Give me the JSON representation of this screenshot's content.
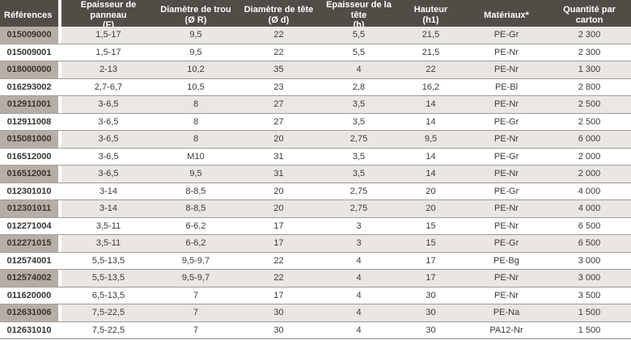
{
  "table": {
    "columns": [
      {
        "key": "references",
        "label": "Références",
        "sub": ""
      },
      {
        "key": "epaisseur-panneau",
        "label": "Epaisseur de panneau",
        "sub": "(F)"
      },
      {
        "key": "diametre-trou",
        "label": "Diamètre de trou",
        "sub": "(Ø R)"
      },
      {
        "key": "diametre-tete",
        "label": "Diamètre de tête",
        "sub": "(Ø d)"
      },
      {
        "key": "epaisseur-tete",
        "label": "Epaisseur de la tête",
        "sub": "(h)"
      },
      {
        "key": "hauteur",
        "label": "Hauteur",
        "sub": "(h1)"
      },
      {
        "key": "materiaux",
        "label": "Matériaux*",
        "sub": ""
      },
      {
        "key": "quantite-carton",
        "label": "Quantité par carton",
        "sub": ""
      }
    ],
    "rows": [
      [
        "015009000",
        "1,5-17",
        "9,5",
        "22",
        "5,5",
        "21,5",
        "PE-Gr",
        "2 300"
      ],
      [
        "015009001",
        "1,5-17",
        "9,5",
        "22",
        "5,5",
        "21,5",
        "PE-Nr",
        "2 300"
      ],
      [
        "018000000",
        "2-13",
        "10,2",
        "35",
        "4",
        "22",
        "PE-Nr",
        "1 300"
      ],
      [
        "016293002",
        "2,7-6,7",
        "10,5",
        "23",
        "2,8",
        "16,2",
        "PE-Bl",
        "2 800"
      ],
      [
        "012911001",
        "3-6,5",
        "8",
        "27",
        "3,5",
        "14",
        "PE-Nr",
        "2 500"
      ],
      [
        "012911008",
        "3-6,5",
        "8",
        "27",
        "3,5",
        "14",
        "PE-Gr",
        "2 500"
      ],
      [
        "015081000",
        "3-6,5",
        "8",
        "20",
        "2,75",
        "9,5",
        "PE-Nr",
        "6 000"
      ],
      [
        "016512000",
        "3-6,5",
        "M10",
        "31",
        "3,5",
        "14",
        "PE-Gr",
        "2 000"
      ],
      [
        "016512001",
        "3-6,5",
        "9,5",
        "31",
        "3,5",
        "14",
        "PE-Nr",
        "2 000"
      ],
      [
        "012301010",
        "3-14",
        "8-8,5",
        "20",
        "2,75",
        "20",
        "PE-Gr",
        "4 000"
      ],
      [
        "012301011",
        "3-14",
        "8-8,5",
        "20",
        "2,75",
        "20",
        "PE-Nr",
        "4 000"
      ],
      [
        "012271004",
        "3,5-11",
        "6-6,2",
        "17",
        "3",
        "15",
        "PE-Nr",
        "6 500"
      ],
      [
        "012271015",
        "3,5-11",
        "6-6,2",
        "17",
        "3",
        "15",
        "PE-Gr",
        "6 500"
      ],
      [
        "012574001",
        "5,5-13,5",
        "9,5-9,7",
        "22",
        "4",
        "17",
        "PE-Bg",
        "3 000"
      ],
      [
        "012574002",
        "5,5-13,5",
        "9,5-9,7",
        "22",
        "4",
        "17",
        "PE-Nr",
        "3 000"
      ],
      [
        "011620000",
        "6,5-13,5",
        "7",
        "17",
        "4",
        "30",
        "PE-Nr",
        "3 500"
      ],
      [
        "012631006",
        "7,5-22,5",
        "7",
        "30",
        "4",
        "30",
        "PE-Na",
        "1 500"
      ],
      [
        "012631010",
        "7,5-22,5",
        "7",
        "30",
        "4",
        "30",
        "PA12-Nr",
        "1 500"
      ]
    ]
  },
  "colors": {
    "header_bg": "#524c47",
    "header_text": "#ffffff",
    "row_shaded_bg": "#e9e6e3",
    "row_plain_bg": "#ffffff",
    "ref_shaded_bg": "#b6ada7",
    "row_line": "#a09c98",
    "bottom_line": "#8d8985",
    "body_text": "#3d3935"
  }
}
